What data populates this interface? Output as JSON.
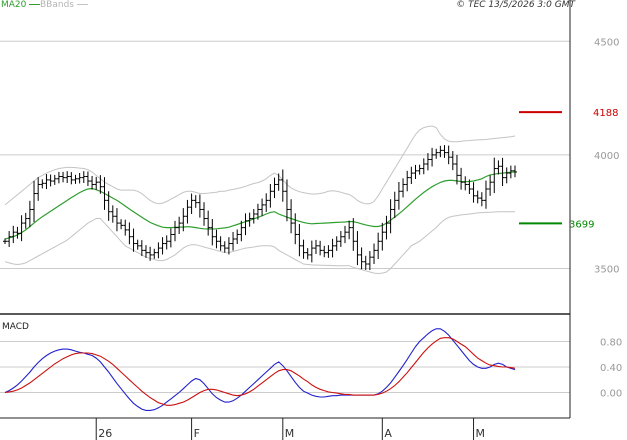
{
  "header": {
    "ma_label": "MA20",
    "bb_label": "BBands",
    "copyright": "© TEC 13/5/2026 3:0 GMT"
  },
  "colors": {
    "price_bar": "#000000",
    "ma20": "#2e9e2e",
    "bbands": "#c4c4c4",
    "resistance": "#cc0000",
    "support": "#008800",
    "macd": "#2222cc",
    "signal": "#cc1111",
    "grid": "#cccccc",
    "axis_text": "#999999"
  },
  "chart_data": [
    {
      "type": "ohlc",
      "name": "price",
      "y_ticks": [
        3500,
        4000,
        4500
      ],
      "y_tick_labels": [
        "3500",
        "4000",
        "4500"
      ],
      "ylim": [
        3300,
        4620
      ],
      "levels": [
        {
          "label": "4188",
          "value": 4188,
          "kind": "resistance"
        },
        {
          "label": "3699",
          "value": 3699,
          "kind": "support"
        }
      ],
      "x_labels": [
        {
          "text": "26",
          "index": 22
        },
        {
          "text": "F",
          "index": 45
        },
        {
          "text": "M",
          "index": 67
        },
        {
          "text": "A",
          "index": 91
        },
        {
          "text": "M",
          "index": 113
        }
      ],
      "close": [
        3620,
        3640,
        3660,
        3655,
        3700,
        3720,
        3760,
        3830,
        3870,
        3875,
        3890,
        3885,
        3895,
        3905,
        3900,
        3905,
        3890,
        3895,
        3900,
        3905,
        3885,
        3870,
        3880,
        3860,
        3800,
        3750,
        3730,
        3700,
        3690,
        3670,
        3640,
        3610,
        3600,
        3580,
        3570,
        3560,
        3570,
        3590,
        3610,
        3620,
        3650,
        3680,
        3700,
        3730,
        3770,
        3800,
        3790,
        3760,
        3720,
        3680,
        3640,
        3620,
        3600,
        3590,
        3610,
        3630,
        3650,
        3680,
        3710,
        3720,
        3740,
        3760,
        3780,
        3800,
        3840,
        3870,
        3890,
        3840,
        3760,
        3700,
        3650,
        3600,
        3570,
        3560,
        3590,
        3600,
        3580,
        3570,
        3580,
        3600,
        3620,
        3640,
        3660,
        3680,
        3620,
        3560,
        3530,
        3520,
        3550,
        3580,
        3620,
        3660,
        3700,
        3760,
        3800,
        3840,
        3870,
        3900,
        3920,
        3930,
        3940,
        3960,
        3980,
        4000,
        4010,
        4020,
        4010,
        3990,
        3960,
        3910,
        3880,
        3870,
        3850,
        3820,
        3810,
        3800,
        3850,
        3880,
        3940,
        3950,
        3900,
        3920,
        3930,
        3925
      ],
      "ma20": [
        3630,
        3635,
        3640,
        3648,
        3658,
        3670,
        3685,
        3700,
        3715,
        3728,
        3740,
        3752,
        3764,
        3776,
        3788,
        3800,
        3812,
        3823,
        3834,
        3843,
        3850,
        3852,
        3847,
        3840,
        3830,
        3820,
        3810,
        3800,
        3788,
        3775,
        3762,
        3750,
        3738,
        3726,
        3714,
        3703,
        3695,
        3688,
        3682,
        3680,
        3680,
        3681,
        3682,
        3683,
        3684,
        3683,
        3680,
        3677,
        3675,
        3674,
        3674,
        3675,
        3677,
        3679,
        3682,
        3688,
        3694,
        3700,
        3706,
        3712,
        3719,
        3725,
        3732,
        3740,
        3747,
        3750,
        3740,
        3733,
        3726,
        3720,
        3714,
        3708,
        3703,
        3699,
        3697,
        3698,
        3699,
        3700,
        3701,
        3702,
        3703,
        3704,
        3705,
        3707,
        3706,
        3702,
        3697,
        3692,
        3688,
        3685,
        3685,
        3690,
        3700,
        3713,
        3727,
        3741,
        3756,
        3772,
        3789,
        3805,
        3820,
        3835,
        3848,
        3860,
        3870,
        3879,
        3885,
        3888,
        3888,
        3885,
        3883,
        3882,
        3883,
        3885,
        3890,
        3895,
        3905,
        3912,
        3915,
        3918,
        3920,
        3922,
        3924,
        3925
      ],
      "bb_upper": [
        3780,
        3795,
        3810,
        3825,
        3840,
        3855,
        3870,
        3885,
        3900,
        3910,
        3920,
        3928,
        3935,
        3940,
        3943,
        3945,
        3945,
        3944,
        3942,
        3940,
        3935,
        3925,
        3910,
        3895,
        3880,
        3870,
        3860,
        3850,
        3845,
        3845,
        3845,
        3845,
        3840,
        3830,
        3815,
        3800,
        3790,
        3785,
        3788,
        3795,
        3805,
        3815,
        3825,
        3835,
        3840,
        3840,
        3835,
        3830,
        3830,
        3832,
        3834,
        3836,
        3840,
        3840,
        3845,
        3848,
        3852,
        3856,
        3862,
        3868,
        3874,
        3878,
        3885,
        3895,
        3910,
        3920,
        3910,
        3890,
        3870,
        3855,
        3845,
        3838,
        3834,
        3830,
        3828,
        3828,
        3830,
        3834,
        3840,
        3842,
        3840,
        3836,
        3830,
        3826,
        3815,
        3800,
        3790,
        3785,
        3785,
        3795,
        3820,
        3850,
        3880,
        3910,
        3940,
        3970,
        4000,
        4030,
        4060,
        4090,
        4110,
        4120,
        4125,
        4127,
        4120,
        4090,
        4070,
        4060,
        4058,
        4058,
        4060,
        4062,
        4063,
        4065,
        4066,
        4067,
        4068,
        4070,
        4072,
        4074,
        4076,
        4078,
        4080,
        4083
      ],
      "bb_lower": [
        3530,
        3525,
        3520,
        3518,
        3520,
        3525,
        3535,
        3545,
        3555,
        3565,
        3575,
        3585,
        3595,
        3605,
        3615,
        3625,
        3640,
        3655,
        3670,
        3685,
        3700,
        3710,
        3720,
        3720,
        3700,
        3680,
        3660,
        3640,
        3620,
        3600,
        3590,
        3580,
        3570,
        3560,
        3550,
        3545,
        3540,
        3535,
        3535,
        3540,
        3550,
        3560,
        3575,
        3590,
        3600,
        3605,
        3605,
        3600,
        3595,
        3590,
        3585,
        3580,
        3575,
        3570,
        3570,
        3575,
        3580,
        3585,
        3590,
        3592,
        3595,
        3598,
        3600,
        3600,
        3600,
        3595,
        3580,
        3570,
        3560,
        3550,
        3540,
        3530,
        3520,
        3518,
        3516,
        3515,
        3515,
        3514,
        3514,
        3513,
        3512,
        3512,
        3512,
        3513,
        3505,
        3500,
        3495,
        3490,
        3485,
        3480,
        3478,
        3480,
        3485,
        3500,
        3520,
        3540,
        3560,
        3580,
        3600,
        3610,
        3620,
        3635,
        3650,
        3665,
        3680,
        3700,
        3715,
        3725,
        3730,
        3733,
        3736,
        3738,
        3740,
        3742,
        3745,
        3746,
        3747,
        3748,
        3749,
        3750,
        3750,
        3750,
        3750,
        3750
      ]
    },
    {
      "type": "line",
      "name": "MACD",
      "y_tick_labels": [
        "0.80",
        "0.40",
        "0.00"
      ],
      "y_ticks": [
        80,
        40,
        0
      ],
      "ylim": [
        -40,
        120
      ],
      "series": [
        {
          "role": "macd",
          "values": [
            0,
            3,
            7,
            12,
            18,
            25,
            32,
            40,
            47,
            53,
            58,
            62,
            65,
            67,
            68,
            68,
            67,
            65,
            63,
            62,
            60,
            58,
            54,
            48,
            40,
            32,
            23,
            14,
            6,
            -2,
            -10,
            -17,
            -22,
            -26,
            -28,
            -28,
            -27,
            -24,
            -20,
            -15,
            -10,
            -5,
            0,
            6,
            12,
            18,
            22,
            20,
            14,
            6,
            -2,
            -8,
            -12,
            -15,
            -15,
            -13,
            -9,
            -4,
            2,
            8,
            14,
            20,
            26,
            32,
            38,
            44,
            48,
            42,
            34,
            25,
            16,
            8,
            2,
            -1,
            -4,
            -6,
            -7,
            -7,
            -6,
            -5,
            -5,
            -4,
            -4,
            -4,
            -4,
            -4,
            -4,
            -4,
            -4,
            -4,
            -2,
            2,
            8,
            15,
            24,
            33,
            42,
            52,
            62,
            72,
            80,
            86,
            92,
            97,
            100,
            100,
            96,
            90,
            82,
            74,
            66,
            58,
            50,
            44,
            40,
            38,
            38,
            40,
            44,
            46,
            44,
            40,
            38,
            36
          ]
        },
        {
          "role": "signal",
          "values": [
            0,
            1,
            2,
            4,
            7,
            11,
            15,
            20,
            25,
            30,
            35,
            40,
            45,
            49,
            53,
            56,
            59,
            61,
            62,
            62,
            62,
            61,
            59,
            57,
            53,
            49,
            44,
            38,
            32,
            26,
            20,
            14,
            8,
            2,
            -3,
            -8,
            -12,
            -16,
            -18,
            -20,
            -20,
            -19,
            -17,
            -15,
            -12,
            -8,
            -4,
            0,
            3,
            5,
            5,
            4,
            2,
            0,
            -2,
            -4,
            -5,
            -4,
            -2,
            1,
            5,
            10,
            15,
            20,
            25,
            30,
            34,
            36,
            36,
            34,
            30,
            26,
            21,
            17,
            12,
            8,
            5,
            3,
            1,
            0,
            -1,
            -2,
            -3,
            -3,
            -4,
            -4,
            -4,
            -4,
            -4,
            -4,
            -3,
            -1,
            2,
            6,
            11,
            17,
            24,
            31,
            39,
            47,
            55,
            63,
            70,
            76,
            81,
            85,
            86,
            86,
            84,
            80,
            76,
            72,
            66,
            60,
            54,
            50,
            46,
            43,
            42,
            41,
            40,
            40,
            39,
            38
          ]
        }
      ]
    }
  ]
}
